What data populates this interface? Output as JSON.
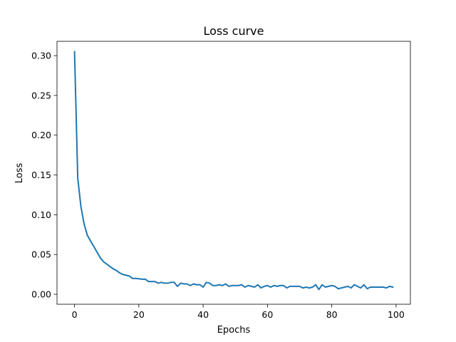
{
  "chart_data": {
    "type": "line",
    "title": "Loss curve",
    "xlabel": "Epochs",
    "ylabel": "Loss",
    "xlim": [
      -5.45,
      104.45
    ],
    "ylim": [
      -0.0125,
      0.318
    ],
    "xticks": [
      0,
      20,
      40,
      60,
      80,
      100
    ],
    "xtick_labels": [
      "0",
      "20",
      "40",
      "60",
      "80",
      "100"
    ],
    "yticks": [
      0.0,
      0.05,
      0.1,
      0.15,
      0.2,
      0.25,
      0.3
    ],
    "ytick_labels": [
      "0.00",
      "0.05",
      "0.10",
      "0.15",
      "0.20",
      "0.25",
      "0.30"
    ],
    "grid": false,
    "line_color": "#1f77b4",
    "series": [
      {
        "x": [
          0,
          1,
          2,
          3,
          4,
          5,
          6,
          7,
          8,
          9,
          10,
          11,
          12,
          13,
          14,
          15,
          16,
          17,
          18,
          19,
          20,
          21,
          22,
          23,
          24,
          25,
          26,
          27,
          28,
          29,
          30,
          31,
          32,
          33,
          34,
          35,
          36,
          37,
          38,
          39,
          40,
          41,
          42,
          43,
          44,
          45,
          46,
          47,
          48,
          49,
          50,
          51,
          52,
          53,
          54,
          55,
          56,
          57,
          58,
          59,
          60,
          61,
          62,
          63,
          64,
          65,
          66,
          67,
          68,
          69,
          70,
          71,
          72,
          73,
          74,
          75,
          76,
          77,
          78,
          79,
          80,
          81,
          82,
          83,
          84,
          85,
          86,
          87,
          88,
          89,
          90,
          91,
          92,
          93,
          94,
          95,
          96,
          97,
          98,
          99
        ],
        "values": [
          0.305,
          0.146,
          0.11,
          0.088,
          0.074,
          0.067,
          0.06,
          0.053,
          0.046,
          0.041,
          0.038,
          0.035,
          0.032,
          0.03,
          0.027,
          0.025,
          0.024,
          0.023,
          0.02,
          0.02,
          0.0195,
          0.019,
          0.019,
          0.016,
          0.016,
          0.016,
          0.014,
          0.015,
          0.014,
          0.014,
          0.015,
          0.015,
          0.01,
          0.014,
          0.013,
          0.013,
          0.011,
          0.013,
          0.012,
          0.012,
          0.009,
          0.015,
          0.014,
          0.011,
          0.011,
          0.012,
          0.011,
          0.013,
          0.01,
          0.011,
          0.011,
          0.011,
          0.012,
          0.009,
          0.011,
          0.01,
          0.009,
          0.012,
          0.008,
          0.01,
          0.011,
          0.009,
          0.011,
          0.01,
          0.011,
          0.011,
          0.008,
          0.01,
          0.01,
          0.01,
          0.01,
          0.008,
          0.009,
          0.008,
          0.009,
          0.012,
          0.006,
          0.012,
          0.009,
          0.01,
          0.011,
          0.01,
          0.007,
          0.008,
          0.009,
          0.01,
          0.008,
          0.012,
          0.01,
          0.008,
          0.012,
          0.007,
          0.009,
          0.009,
          0.009,
          0.009,
          0.009,
          0.008,
          0.01,
          0.009
        ]
      }
    ]
  }
}
